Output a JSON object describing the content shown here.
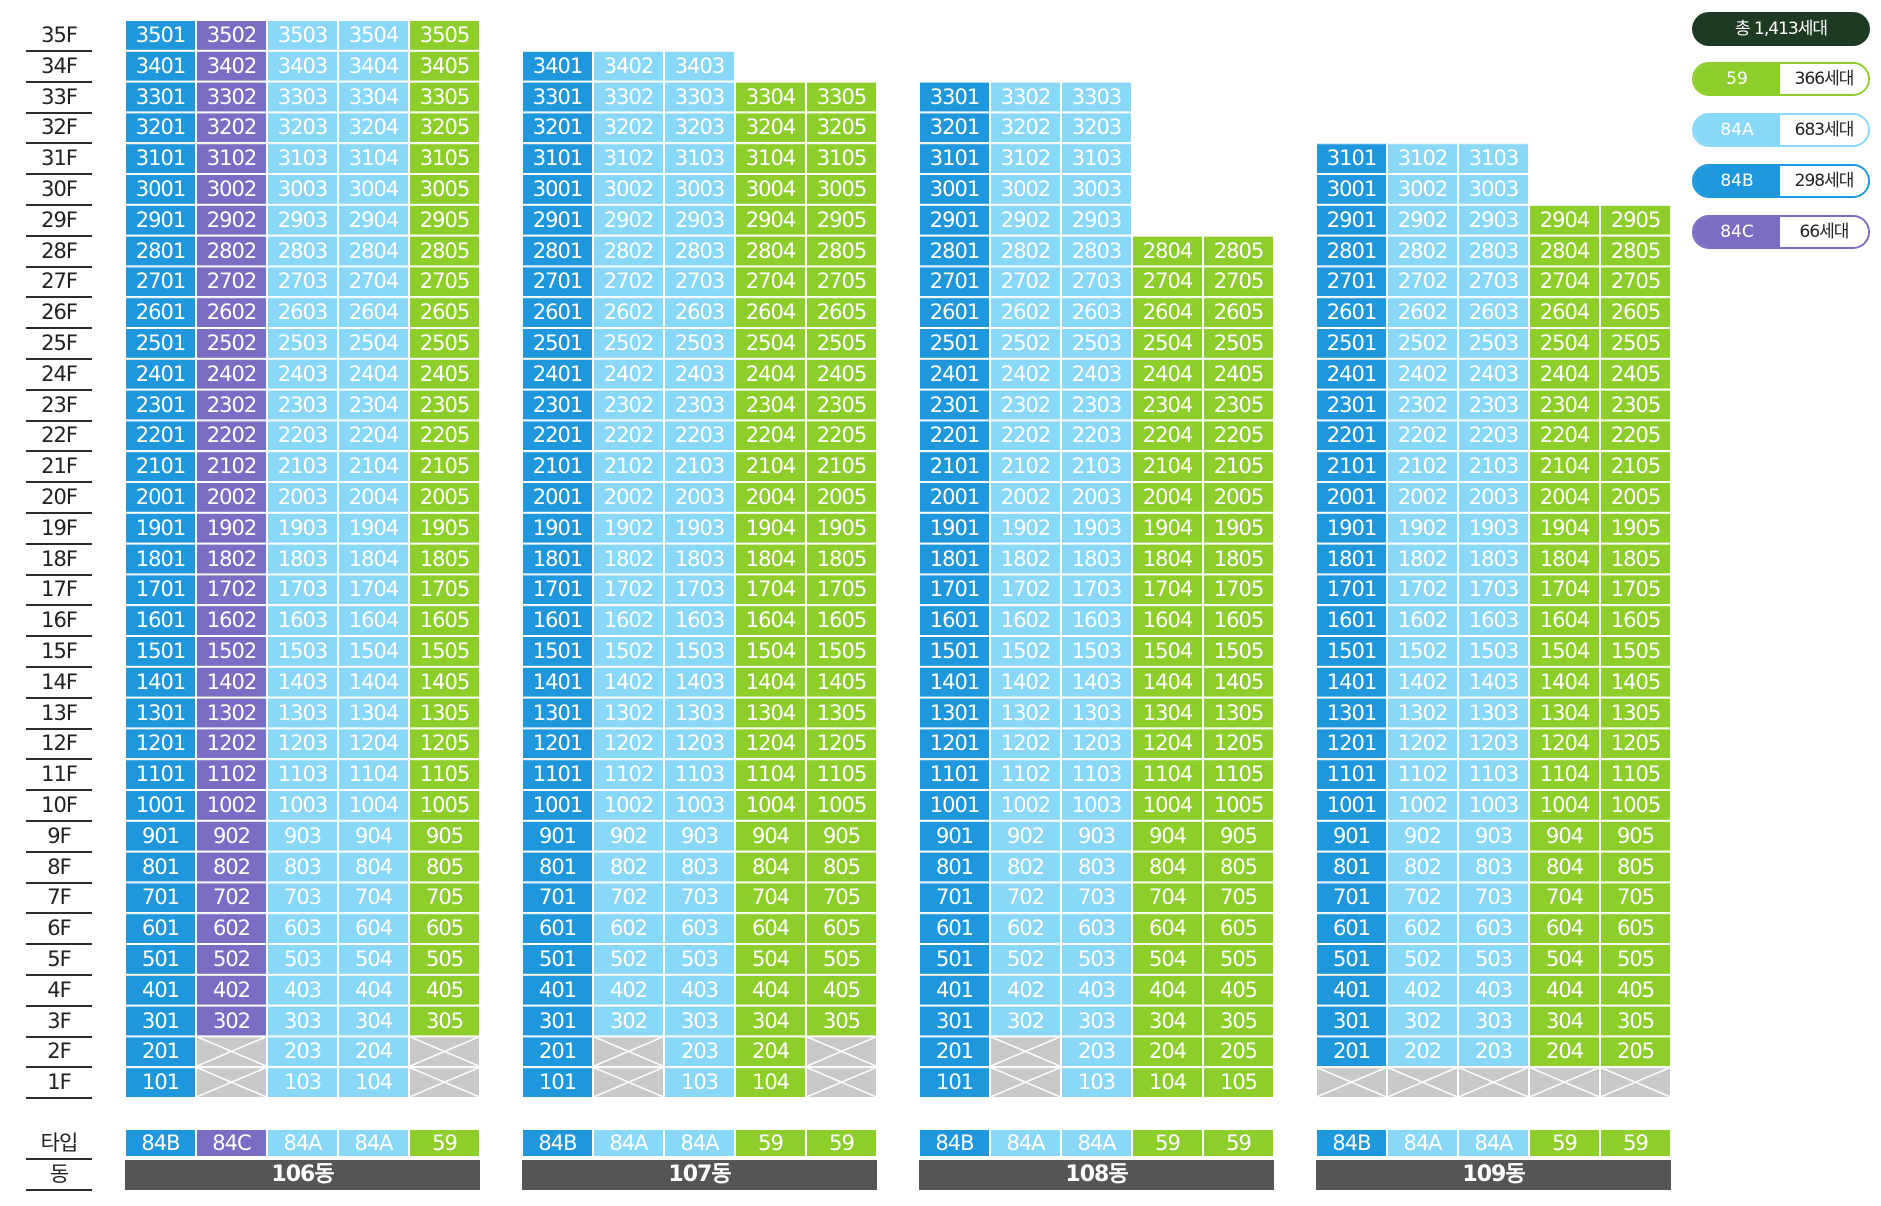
{
  "floors": [
    "35F",
    "34F",
    "33F",
    "32F",
    "31F",
    "30F",
    "29F",
    "28F",
    "27F",
    "26F",
    "25F",
    "24F",
    "23F",
    "22F",
    "21F",
    "20F",
    "19F",
    "18F",
    "17F",
    "16F",
    "15F",
    "14F",
    "13F",
    "12F",
    "11F",
    "10F",
    "9F",
    "8F",
    "7F",
    "6F",
    "5F",
    "4F",
    "3F",
    "2F",
    "1F"
  ],
  "row_captions": {
    "type": "타입",
    "building": "동"
  },
  "colors": {
    "59": "#8ece2a",
    "84A": "#8ad8f7",
    "84B": "#1e97dc",
    "84C": "#7a6dc4",
    "empty": "#c9c9c9",
    "total": "#1f3a22",
    "building_bar": "#555555"
  },
  "legend": {
    "total": "총 1,413세대",
    "items": [
      {
        "type": "59",
        "count": "366세대"
      },
      {
        "type": "84A",
        "count": "683세대"
      },
      {
        "type": "84B",
        "count": "298세대"
      },
      {
        "type": "84C",
        "count": "66세대"
      }
    ]
  },
  "buildings": [
    {
      "name": "106동",
      "line_types": [
        "84B",
        "84C",
        "84A",
        "84A",
        "59"
      ],
      "top_floors": [
        35,
        35,
        35,
        35,
        35
      ],
      "empty_units": [
        "202",
        "205",
        "102",
        "105"
      ]
    },
    {
      "name": "107동",
      "line_types": [
        "84B",
        "84A",
        "84A",
        "59",
        "59"
      ],
      "top_floors": [
        34,
        34,
        34,
        33,
        33
      ],
      "empty_units": [
        "202",
        "205",
        "102",
        "105"
      ]
    },
    {
      "name": "108동",
      "line_types": [
        "84B",
        "84A",
        "84A",
        "59",
        "59"
      ],
      "top_floors": [
        33,
        33,
        33,
        28,
        28
      ],
      "empty_units": [
        "202",
        "102"
      ]
    },
    {
      "name": "109동",
      "line_types": [
        "84B",
        "84A",
        "84A",
        "59",
        "59"
      ],
      "top_floors": [
        31,
        31,
        31,
        29,
        29
      ],
      "empty_units": [
        "101",
        "102",
        "103",
        "104",
        "105"
      ]
    }
  ]
}
